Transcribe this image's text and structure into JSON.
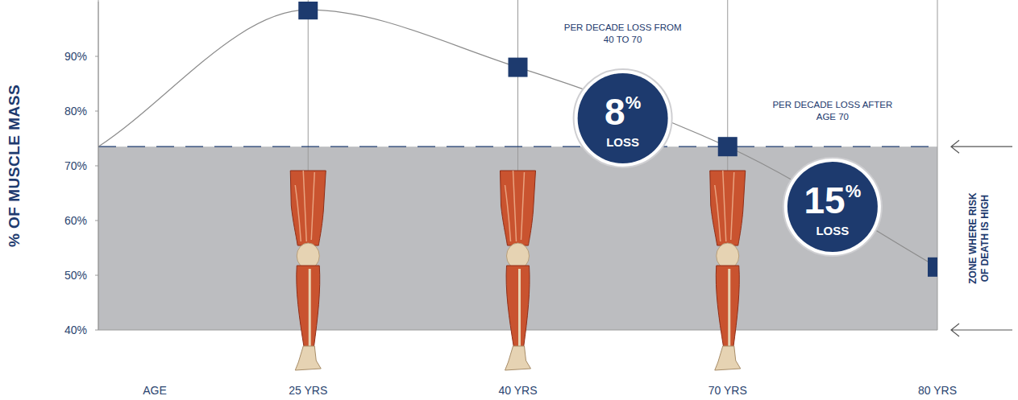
{
  "chart_data": {
    "type": "line",
    "y_label": "% OF MUSCLE MASS",
    "x_label": "AGE",
    "categories": [
      null,
      "25 YRS",
      "40 YRS",
      "70 YRS",
      "80 YRS"
    ],
    "series": [
      {
        "values": [
          73.5,
          98.5,
          88,
          73.5,
          51.5
        ],
        "color": "#8c8c8c",
        "line_style": "smooth"
      },
      {
        "type": "scatter",
        "values": [
          null,
          98.5,
          88,
          73.5,
          51.5
        ],
        "color": "#1d3a6e",
        "marker": "square"
      }
    ],
    "ylim": [
      40,
      100
    ],
    "yticks": [
      {
        "value": 40,
        "label": "40%"
      },
      {
        "value": 50,
        "label": "50%"
      },
      {
        "value": 60,
        "label": "60%"
      },
      {
        "value": 70,
        "label": "70%"
      },
      {
        "value": 80,
        "label": "80%"
      },
      {
        "value": 90,
        "label": "90%"
      }
    ],
    "grid": true,
    "threshold": {
      "value": 73.5,
      "label": "ZONE WHERE RISK OF DEATH IS HIGH",
      "color": "#bcbdc0"
    },
    "annotations": [
      {
        "text": "PER DECADE LOSS FROM 40 TO 70",
        "value": 8,
        "value_label": "8%",
        "sub_label": "LOSS"
      },
      {
        "text": "PER DECADE LOSS AFTER AGE 70",
        "value": 15,
        "value_label": "15%",
        "sub_label": "LOSS"
      }
    ]
  }
}
